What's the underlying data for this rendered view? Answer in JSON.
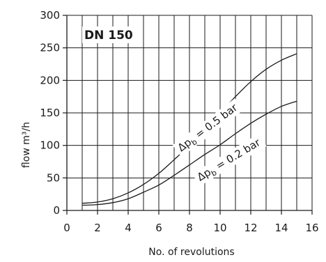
{
  "chart_data": {
    "type": "line",
    "title": "DN 150",
    "xlabel": "No. of revolutions",
    "ylabel": "flow m³/h",
    "xlim": [
      0,
      16
    ],
    "ylim": [
      0,
      300
    ],
    "x_ticks": [
      0,
      2,
      4,
      6,
      8,
      10,
      12,
      14,
      16
    ],
    "y_ticks": [
      0,
      50,
      100,
      150,
      200,
      250,
      300
    ],
    "grid": true,
    "series": [
      {
        "label_parts": {
          "delta": "Δp",
          "sub": "b",
          "rest": " = 0.5 bar"
        },
        "x": [
          1,
          2,
          3,
          4,
          5,
          6,
          7,
          8,
          9,
          10,
          11,
          12,
          13,
          14,
          15
        ],
        "values": [
          11,
          13,
          18,
          27,
          40,
          57,
          78,
          100,
          125,
          150,
          175,
          198,
          217,
          231,
          241
        ]
      },
      {
        "label_parts": {
          "delta": "Δp",
          "sub": "b",
          "rest": " = 0.2 bar"
        },
        "x": [
          1,
          2,
          3,
          4,
          5,
          6,
          7,
          8,
          9,
          10,
          11,
          12,
          13,
          14,
          15
        ],
        "values": [
          8,
          9,
          12,
          18,
          28,
          39,
          54,
          70,
          86,
          101,
          118,
          134,
          148,
          160,
          168
        ]
      }
    ]
  }
}
